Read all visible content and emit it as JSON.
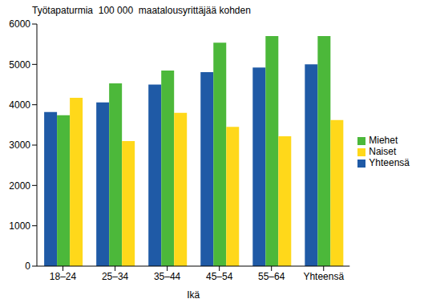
{
  "chart_data": {
    "type": "bar",
    "y_label": "Työtapaturmia  100 000  maatalousyrittäjää kohden",
    "x_label": "Ikä",
    "categories": [
      "18–24",
      "25–34",
      "35–44",
      "45–54",
      "55–64",
      "Yhteensä"
    ],
    "series": [
      {
        "name": "Yhteensä",
        "color": "#1f5aa6",
        "values": [
          3820,
          4060,
          4500,
          4810,
          4920,
          5000
        ]
      },
      {
        "name": "Miehet",
        "color": "#4cb83a",
        "values": [
          3740,
          4530,
          4850,
          5540,
          5700,
          5700
        ]
      },
      {
        "name": "Naiset",
        "color": "#ffd81a",
        "values": [
          4170,
          3100,
          3800,
          3450,
          3220,
          3620
        ]
      }
    ],
    "ylim": [
      0,
      6000
    ],
    "yticks": [
      0,
      1000,
      2000,
      3000,
      4000,
      5000,
      6000
    ],
    "grid": false,
    "legend": "right"
  }
}
